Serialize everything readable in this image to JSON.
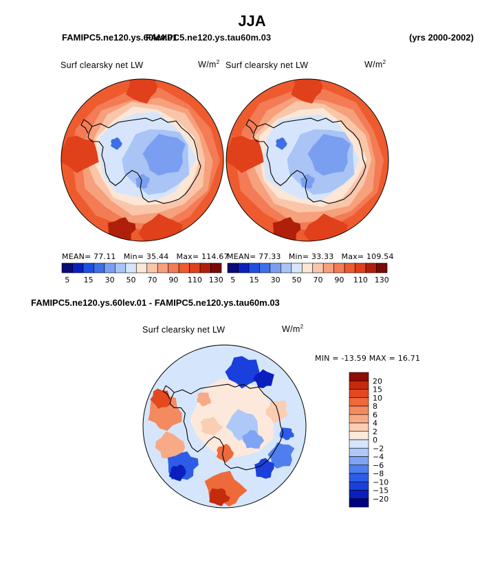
{
  "title": "JJA",
  "header": {
    "case_left_a": "FAMIPC5.ne120.ys.60lev.01",
    "case_left_b": "FAMIPC5.ne120.ys.tau60m.03",
    "years_overlap": "(yrs 2000-2002)",
    "years_right": "(yrs 2000-2002)"
  },
  "colors": {
    "land_outline": "#000000",
    "seq_palette": [
      "#0a0a7a",
      "#0b1fbf",
      "#1f4fe0",
      "#3f6fe6",
      "#7b9ff0",
      "#a9c4f5",
      "#d6e5fb",
      "#fce6d6",
      "#f9c6aa",
      "#f6a07c",
      "#f37b55",
      "#ee5b2f",
      "#e0401a",
      "#b01f0a",
      "#7a0a04"
    ],
    "diff_palette": [
      "#00007f",
      "#0b1fbf",
      "#1a3fdc",
      "#2e5ce8",
      "#4f7fee",
      "#7fa4f3",
      "#aec9f8",
      "#d5e6fc",
      "#fde9dc",
      "#fbcdb3",
      "#f8aa86",
      "#f48a5f",
      "#ef6a3a",
      "#e4481e",
      "#c52a0c",
      "#8f0c02"
    ]
  },
  "chart_data": [
    {
      "type": "heatmap",
      "projection": "south-polar-stereographic",
      "title": "Surf clearsky net LW",
      "units": "W/m2",
      "case": "FAMIPC5.ne120.ys.60lev.01",
      "stats": {
        "mean": 77.11,
        "min": 35.44,
        "max": 114.67
      },
      "stats_text": {
        "mean": "MEAN= 77.11",
        "min": "Min= 35.44",
        "max": "Max= 114.67"
      },
      "colorbar_labels": [
        "5",
        "15",
        "30",
        "50",
        "70",
        "90",
        "110",
        "130"
      ],
      "colorbar_levels": [
        5,
        10,
        15,
        20,
        30,
        40,
        50,
        60,
        70,
        80,
        90,
        100,
        110,
        120,
        130
      ]
    },
    {
      "type": "heatmap",
      "projection": "south-polar-stereographic",
      "title": "Surf clearsky net LW",
      "units": "W/m2",
      "case": "FAMIPC5.ne120.ys.tau60m.03",
      "stats": {
        "mean": 77.33,
        "min": 33.33,
        "max": 109.54
      },
      "stats_text": {
        "mean": "MEAN= 77.33",
        "min": "Min= 33.33",
        "max": "Max= 109.54"
      },
      "colorbar_labels": [
        "5",
        "15",
        "30",
        "50",
        "70",
        "90",
        "110",
        "130"
      ],
      "colorbar_levels": [
        5,
        10,
        15,
        20,
        30,
        40,
        50,
        60,
        70,
        80,
        90,
        100,
        110,
        120,
        130
      ]
    },
    {
      "type": "heatmap",
      "projection": "south-polar-stereographic",
      "title": "Surf clearsky net LW",
      "units": "W/m2",
      "difference_title": "FAMIPC5.ne120.ys.60lev.01 - FAMIPC5.ne120.ys.tau60m.03",
      "stats": {
        "min": -13.59,
        "max": 16.71
      },
      "stats_text": "MIN = -13.59 MAX =  16.71",
      "colorbar_labels": [
        "20",
        "15",
        "10",
        "8",
        "6",
        "4",
        "2",
        "0",
        "−2",
        "−4",
        "−6",
        "−8",
        "−10",
        "−15",
        "−20"
      ],
      "colorbar_levels": [
        20,
        15,
        10,
        8,
        6,
        4,
        2,
        0,
        -2,
        -4,
        -6,
        -8,
        -10,
        -15,
        -20
      ]
    }
  ]
}
